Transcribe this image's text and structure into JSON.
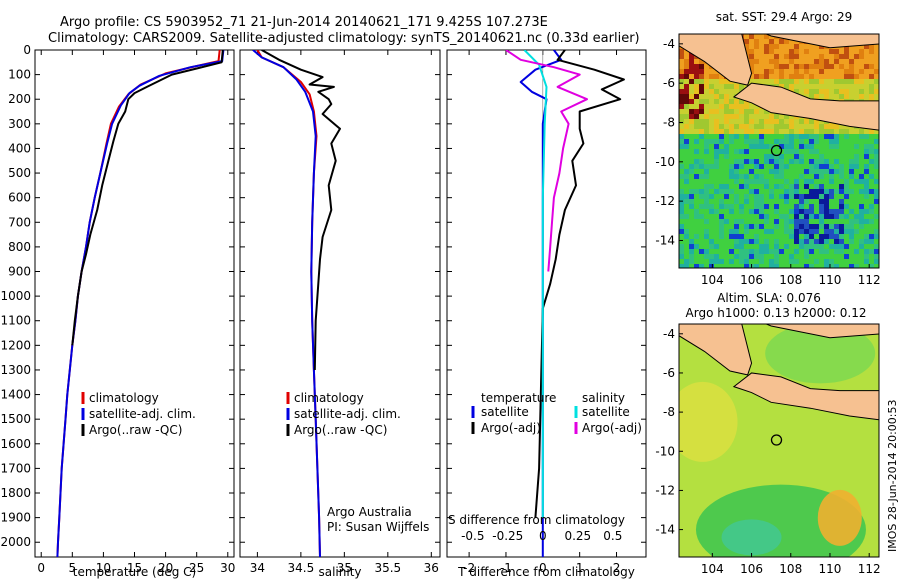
{
  "header": {
    "line1": "Argo profile: CS 5903952_71 21-Jun-2014 20140621_171 9.425S 107.273E",
    "line2": "Climatology: CARS2009. Satellite-adjusted climatology: synTS_20140621.nc (0.33d earlier)"
  },
  "colors": {
    "climatology": "#e00000",
    "satellite": "#0000e0",
    "argo": "#000000",
    "salinity_satellite": "#00e0e0",
    "salinity_argo": "#e000e0",
    "land": "#f6c191"
  },
  "chart_data": [
    {
      "type": "line",
      "xlabel": "temperature (deg C)",
      "xlim": [
        -1,
        31
      ],
      "xticks": [
        0,
        5,
        10,
        15,
        20,
        25,
        30
      ],
      "ylim": [
        0,
        2060
      ],
      "yticks": [
        0,
        100,
        200,
        300,
        400,
        500,
        600,
        700,
        800,
        900,
        1000,
        1100,
        1200,
        1300,
        1400,
        1500,
        1600,
        1700,
        1800,
        1900,
        2000
      ],
      "legend": {
        "placement": "lower-center",
        "entries": [
          "climatology",
          "satellite-adj. clim.",
          "Argo(..raw -QC)"
        ]
      },
      "series": [
        {
          "name": "climatology",
          "color": "#e00000",
          "points": [
            [
              28.7,
              0
            ],
            [
              28.5,
              45
            ],
            [
              25,
              65
            ],
            [
              20,
              95
            ],
            [
              16,
              140
            ],
            [
              14,
              180
            ],
            [
              12.5,
              230
            ],
            [
              11.2,
              300
            ],
            [
              10.5,
              380
            ],
            [
              9.5,
              500
            ],
            [
              8.6,
              600
            ],
            [
              7.8,
              700
            ],
            [
              7.2,
              800
            ],
            [
              6.5,
              900
            ],
            [
              5.9,
              1000
            ],
            [
              5.5,
              1100
            ],
            [
              5.0,
              1200
            ],
            [
              4.6,
              1300
            ],
            [
              4.2,
              1400
            ],
            [
              3.9,
              1500
            ],
            [
              3.6,
              1600
            ],
            [
              3.3,
              1700
            ],
            [
              3.1,
              1800
            ],
            [
              2.9,
              1900
            ],
            [
              2.7,
              2000
            ],
            [
              2.6,
              2060
            ]
          ]
        },
        {
          "name": "satellite-adj. clim.",
          "color": "#0000e0",
          "points": [
            [
              29.3,
              0
            ],
            [
              29.1,
              45
            ],
            [
              24,
              70
            ],
            [
              19,
              105
            ],
            [
              15.8,
              145
            ],
            [
              14.2,
              175
            ],
            [
              12.8,
              225
            ],
            [
              11.4,
              300
            ],
            [
              10.6,
              380
            ],
            [
              9.5,
              500
            ],
            [
              8.6,
              600
            ],
            [
              7.8,
              700
            ],
            [
              7.2,
              800
            ],
            [
              6.5,
              900
            ],
            [
              5.9,
              1000
            ],
            [
              5.5,
              1100
            ],
            [
              5.0,
              1200
            ],
            [
              4.6,
              1300
            ],
            [
              4.2,
              1400
            ],
            [
              3.9,
              1500
            ],
            [
              3.6,
              1600
            ],
            [
              3.3,
              1700
            ],
            [
              3.1,
              1800
            ],
            [
              2.9,
              1900
            ],
            [
              2.7,
              2000
            ],
            [
              2.6,
              2060
            ]
          ]
        },
        {
          "name": "Argo(..raw -QC)",
          "color": "#000000",
          "points": [
            [
              29.2,
              0
            ],
            [
              29.0,
              50
            ],
            [
              25,
              75
            ],
            [
              21,
              100
            ],
            [
              17,
              150
            ],
            [
              15,
              175
            ],
            [
              14,
              200
            ],
            [
              13.5,
              250
            ],
            [
              12.4,
              300
            ],
            [
              11.6,
              370
            ],
            [
              10.8,
              450
            ],
            [
              9.8,
              550
            ],
            [
              9.0,
              650
            ],
            [
              7.9,
              750
            ],
            [
              7.2,
              830
            ],
            [
              6.5,
              900
            ],
            [
              5.9,
              1000
            ],
            [
              5.4,
              1100
            ],
            [
              5.0,
              1200
            ]
          ]
        }
      ]
    },
    {
      "type": "line",
      "xlabel": "salinity",
      "xlim": [
        33.8,
        36.1
      ],
      "xticks": [
        34,
        34.5,
        35,
        35.5,
        36
      ],
      "ylim": [
        0,
        2060
      ],
      "legend": {
        "placement": "lower-center",
        "entries": [
          "climatology",
          "satellite-adj. clim.",
          "Argo(..raw -QC)"
        ]
      },
      "annotations": [
        "Argo Australia",
        "PI: Susan Wijffels"
      ],
      "series": [
        {
          "name": "climatology",
          "color": "#e00000",
          "points": [
            [
              34.0,
              0
            ],
            [
              34.05,
              30
            ],
            [
              34.3,
              70
            ],
            [
              34.5,
              130
            ],
            [
              34.6,
              180
            ],
            [
              34.65,
              250
            ],
            [
              34.68,
              350
            ],
            [
              34.65,
              500
            ],
            [
              34.63,
              700
            ],
            [
              34.62,
              900
            ],
            [
              34.63,
              1100
            ],
            [
              34.65,
              1300
            ],
            [
              34.67,
              1500
            ],
            [
              34.69,
              1700
            ],
            [
              34.71,
              1900
            ],
            [
              34.72,
              2060
            ]
          ]
        },
        {
          "name": "satellite-adj. clim.",
          "color": "#0000e0",
          "points": [
            [
              33.95,
              0
            ],
            [
              34.05,
              30
            ],
            [
              34.3,
              70
            ],
            [
              34.45,
              120
            ],
            [
              34.55,
              170
            ],
            [
              34.64,
              250
            ],
            [
              34.67,
              350
            ],
            [
              34.65,
              500
            ],
            [
              34.63,
              700
            ],
            [
              34.62,
              900
            ],
            [
              34.63,
              1100
            ],
            [
              34.65,
              1300
            ],
            [
              34.67,
              1500
            ],
            [
              34.69,
              1700
            ],
            [
              34.71,
              1900
            ],
            [
              34.72,
              2060
            ]
          ]
        },
        {
          "name": "Argo(..raw -QC)",
          "color": "#000000",
          "points": [
            [
              34.05,
              0
            ],
            [
              34.25,
              40
            ],
            [
              34.5,
              80
            ],
            [
              34.75,
              110
            ],
            [
              34.6,
              140
            ],
            [
              34.88,
              150
            ],
            [
              34.7,
              170
            ],
            [
              34.82,
              200
            ],
            [
              34.85,
              220
            ],
            [
              34.75,
              260
            ],
            [
              34.95,
              320
            ],
            [
              34.85,
              380
            ],
            [
              34.9,
              450
            ],
            [
              34.82,
              550
            ],
            [
              34.85,
              650
            ],
            [
              34.75,
              760
            ],
            [
              34.72,
              850
            ],
            [
              34.7,
              950
            ],
            [
              34.67,
              1100
            ],
            [
              34.66,
              1300
            ]
          ]
        }
      ]
    },
    {
      "type": "line",
      "xlabel": "T difference from climatology",
      "xlabel_top": "S difference from climatology",
      "xlim": [
        -2.6,
        2.8
      ],
      "xticks": [
        -2,
        -1,
        0,
        1,
        2
      ],
      "xticks_top": [
        {
          "label": "-0.5",
          "t": -1.9
        },
        {
          "label": "-0.25",
          "t": -0.95
        },
        {
          "label": "0",
          "t": 0
        },
        {
          "label": "0.25",
          "t": 0.95
        },
        {
          "label": "0.5",
          "t": 1.9
        }
      ],
      "ylim": [
        0,
        2060
      ],
      "legend": {
        "placement": "lower-center",
        "group1": {
          "heading": "temperature",
          "entries": [
            "satellite",
            "Argo(-adj)"
          ]
        },
        "group2": {
          "heading": "salinity",
          "entries": [
            "satellite",
            "Argo(-adj)"
          ]
        }
      },
      "series": [
        {
          "name": "temperature satellite",
          "color": "#0000e0",
          "points": [
            [
              0.3,
              0
            ],
            [
              0.5,
              40
            ],
            [
              -0.2,
              80
            ],
            [
              -0.6,
              130
            ],
            [
              -0.3,
              170
            ],
            [
              0.1,
              200
            ],
            [
              0.0,
              300
            ],
            [
              0.0,
              2060
            ]
          ]
        },
        {
          "name": "temperature Argo(-adj)",
          "color": "#000000",
          "points": [
            [
              0.6,
              0
            ],
            [
              0.4,
              40
            ],
            [
              1.4,
              80
            ],
            [
              2.2,
              120
            ],
            [
              1.6,
              160
            ],
            [
              2.1,
              200
            ],
            [
              1.0,
              250
            ],
            [
              1.0,
              320
            ],
            [
              1.1,
              380
            ],
            [
              0.8,
              450
            ],
            [
              0.9,
              550
            ],
            [
              0.6,
              650
            ],
            [
              0.45,
              750
            ],
            [
              0.35,
              850
            ],
            [
              0.2,
              950
            ],
            [
              0.0,
              1050
            ],
            [
              -0.1,
              1700
            ],
            [
              -0.2,
              1900
            ]
          ]
        },
        {
          "name": "salinity satellite",
          "color": "#00e0e0",
          "points": [
            [
              -0.5,
              0
            ],
            [
              -0.1,
              60
            ],
            [
              0.1,
              150
            ],
            [
              0.05,
              300
            ],
            [
              0.0,
              600
            ],
            [
              0.0,
              1000
            ],
            [
              0.0,
              1400
            ],
            [
              0.0,
              1900
            ]
          ]
        },
        {
          "name": "salinity Argo(-adj)",
          "color": "#e000e0",
          "points": [
            [
              -1.0,
              0
            ],
            [
              -0.6,
              40
            ],
            [
              0.3,
              70
            ],
            [
              1.0,
              100
            ],
            [
              0.4,
              150
            ],
            [
              1.2,
              200
            ],
            [
              0.5,
              250
            ],
            [
              0.7,
              300
            ],
            [
              0.55,
              400
            ],
            [
              0.45,
              500
            ],
            [
              0.3,
              600
            ],
            [
              0.25,
              700
            ],
            [
              0.2,
              800
            ],
            [
              0.15,
              900
            ]
          ]
        }
      ]
    },
    {
      "type": "heatmap",
      "title": "sat. SST: 29.4 Argo: 29",
      "xticks": [
        104,
        106,
        108,
        110,
        112
      ],
      "yticks": [
        -4,
        -6,
        -8,
        -10,
        -12,
        -14
      ],
      "xlim": [
        102.3,
        112.5
      ],
      "ylim": [
        -15.4,
        -3.5
      ],
      "argo_position": {
        "lon": 107.273,
        "lat": -9.425
      }
    },
    {
      "type": "heatmap",
      "title": "Altim. SLA: 0.076",
      "subtitle": "Argo h1000: 0.13 h2000: 0.12",
      "xticks": [
        104,
        106,
        108,
        110,
        112
      ],
      "yticks": [
        -4,
        -6,
        -8,
        -10,
        -12,
        -14
      ],
      "xlim": [
        102.3,
        112.5
      ],
      "ylim": [
        -15.4,
        -3.5
      ],
      "argo_position": {
        "lon": 107.273,
        "lat": -9.425
      }
    }
  ],
  "watermark": "IMOS 28-Jun-2014 20:00:53"
}
